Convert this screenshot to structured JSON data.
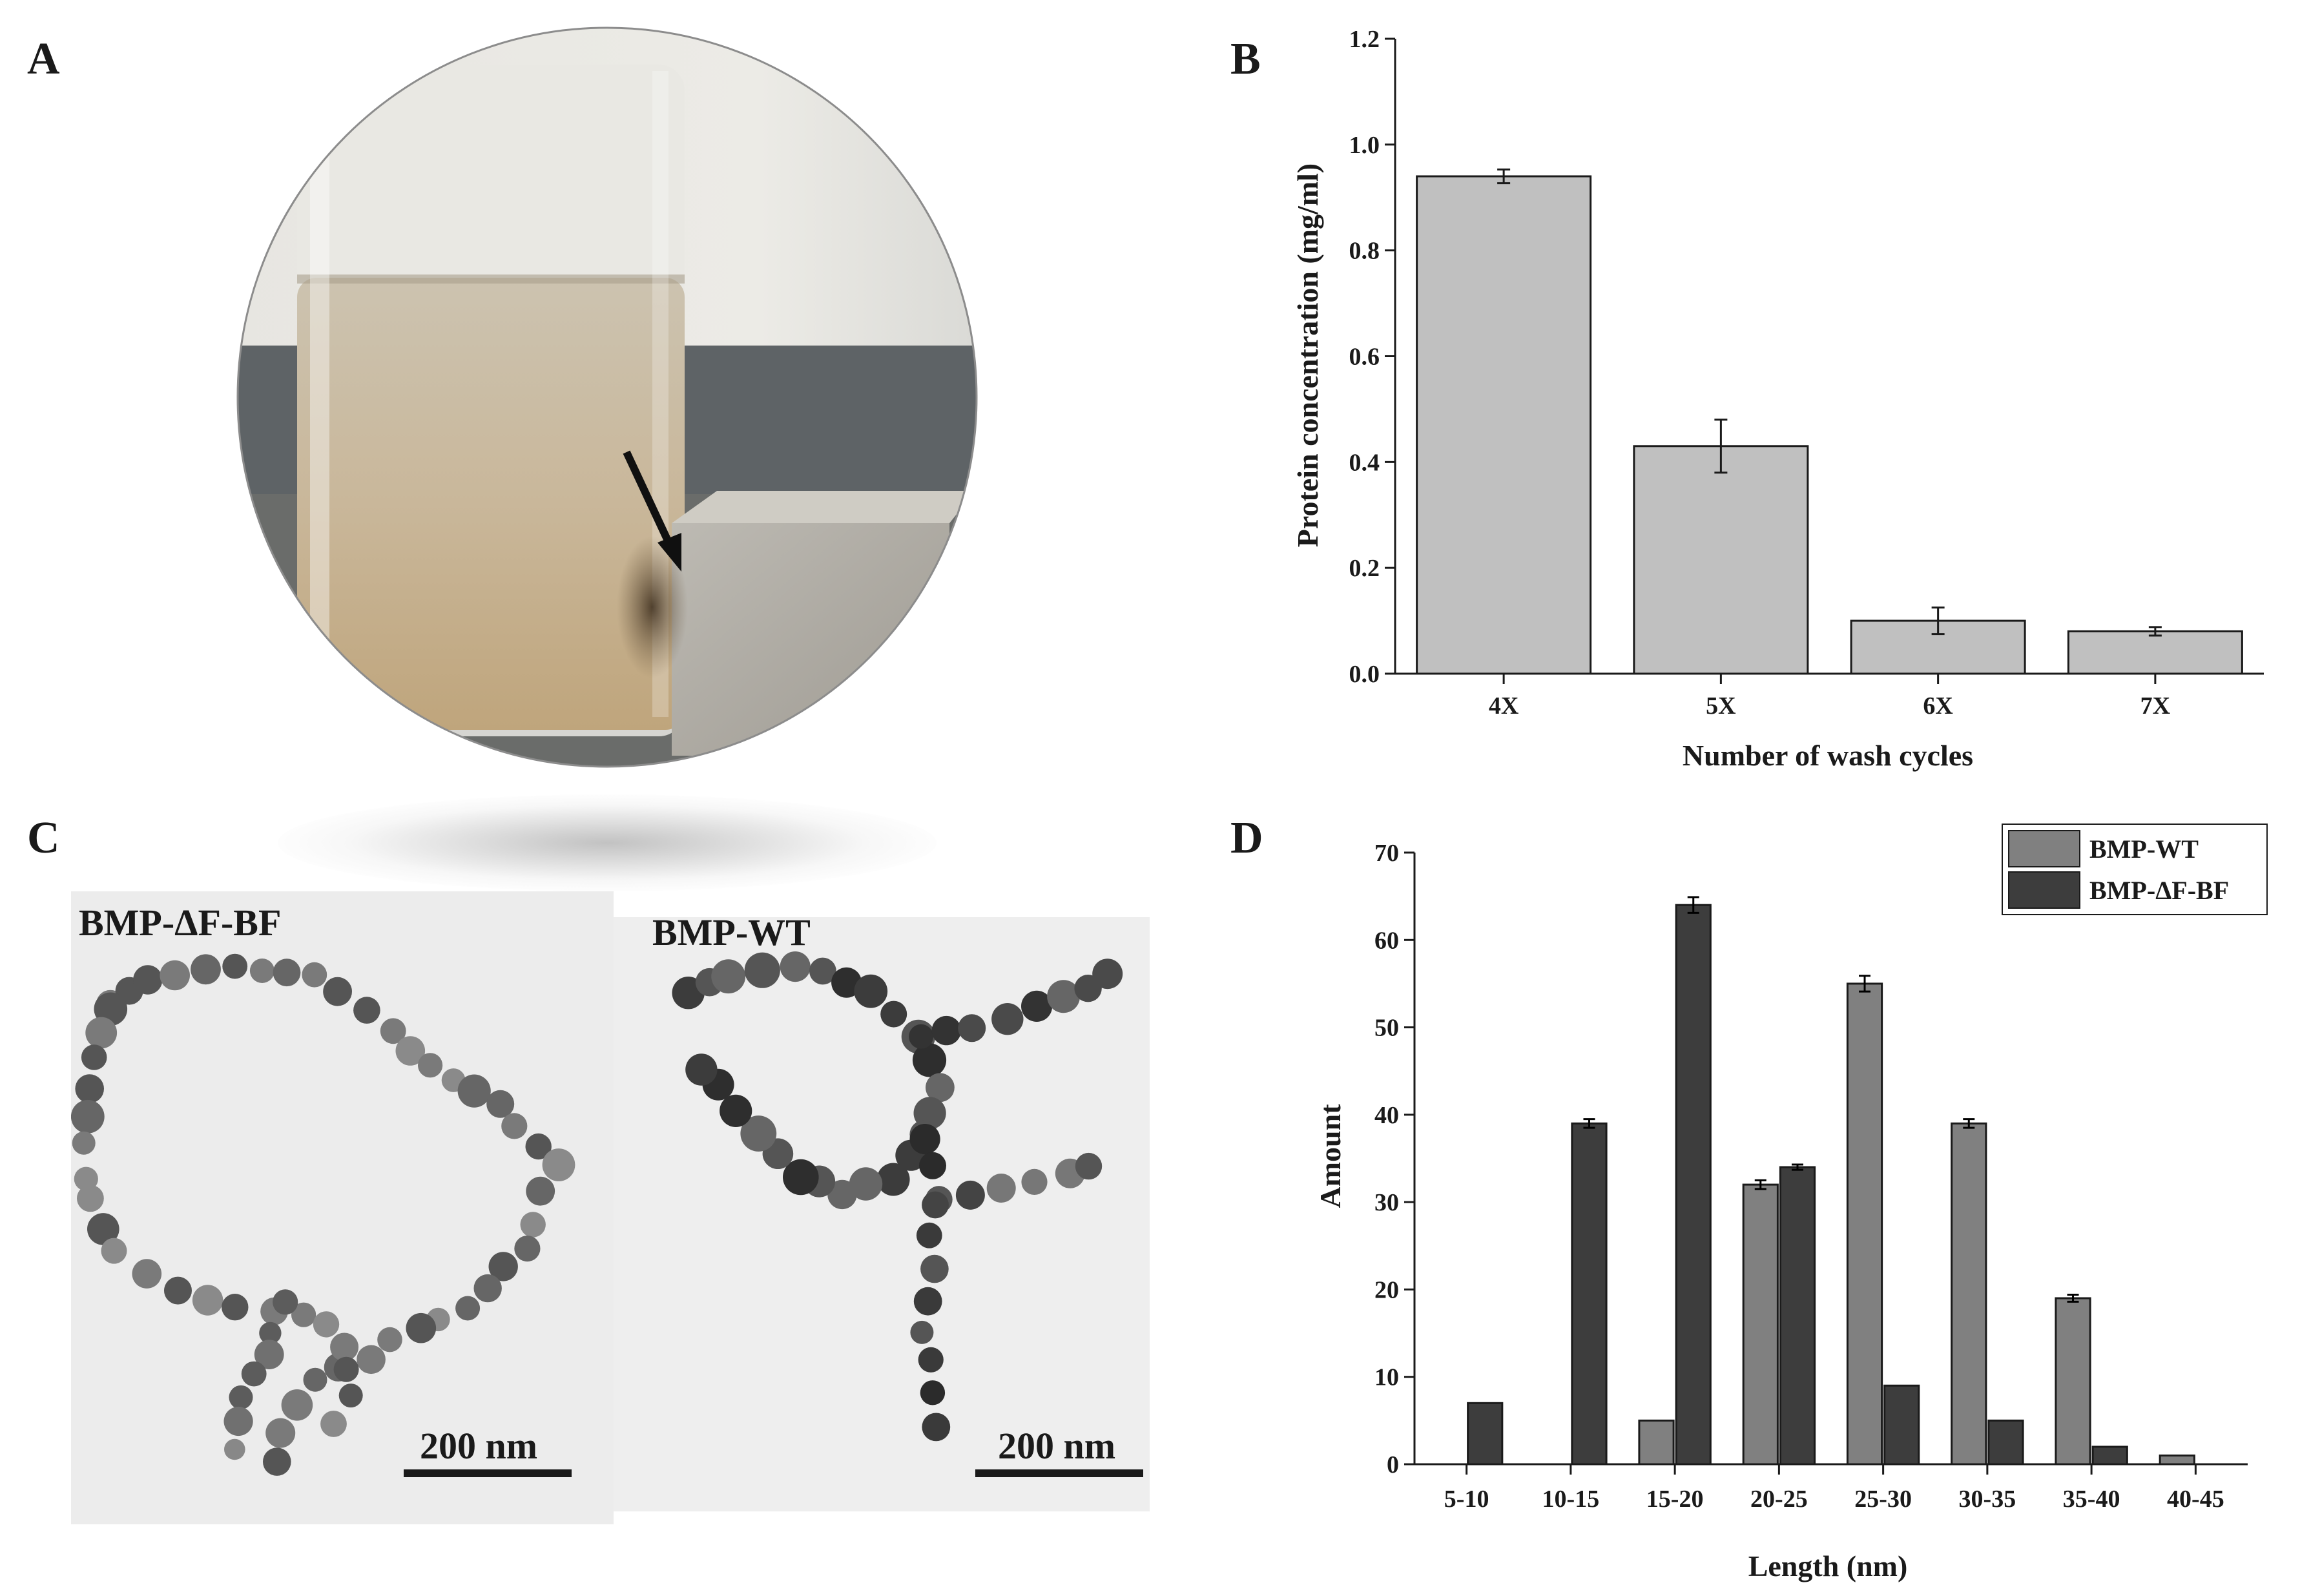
{
  "panels": {
    "a": "A",
    "b": "B",
    "c": "C",
    "d": "D"
  },
  "tem": {
    "left_label": "BMP-ΔF-BF",
    "right_label": "BMP-WT",
    "left_scale": "200 nm",
    "right_scale": "200 nm"
  },
  "colors": {
    "bar_b": "#c0c0c0",
    "wt": "#808080",
    "bf": "#3d3d3d",
    "axis": "#1a1a1a"
  },
  "chart_data": [
    {
      "id": "B",
      "type": "bar",
      "title": "",
      "xlabel": "Number of wash cycles",
      "ylabel": "Protein concentration (mg/ml)",
      "categories": [
        "4X",
        "5X",
        "6X",
        "7X"
      ],
      "values": [
        0.94,
        0.43,
        0.1,
        0.08
      ],
      "errors": [
        0.013,
        0.05,
        0.025,
        0.008
      ],
      "ylim": [
        0,
        1.2
      ],
      "yticks": [
        "0.0",
        "0.2",
        "0.4",
        "0.6",
        "0.8",
        "1.0",
        "1.2"
      ],
      "grid": false
    },
    {
      "id": "D",
      "type": "bar",
      "title": "",
      "xlabel": "Length (nm)",
      "ylabel": "Amount",
      "categories": [
        "5-10",
        "10-15",
        "15-20",
        "20-25",
        "25-30",
        "30-35",
        "35-40",
        "40-45"
      ],
      "series": [
        {
          "name": "BMP-WT",
          "values": [
            0,
            0,
            5,
            32,
            55,
            39,
            19,
            1
          ],
          "errors": [
            0,
            0,
            0,
            0.5,
            0.9,
            0.5,
            0.4,
            0
          ]
        },
        {
          "name": "BMP-ΔF-BF",
          "values": [
            7,
            39,
            64,
            34,
            9,
            5,
            2,
            0
          ],
          "errors": [
            0,
            0.5,
            0.9,
            0.3,
            0,
            0,
            0,
            0
          ]
        }
      ],
      "ylim": [
        0,
        70
      ],
      "yticks": [
        "0",
        "10",
        "20",
        "30",
        "40",
        "50",
        "60",
        "70"
      ],
      "legend": "top-right",
      "grid": false
    }
  ]
}
